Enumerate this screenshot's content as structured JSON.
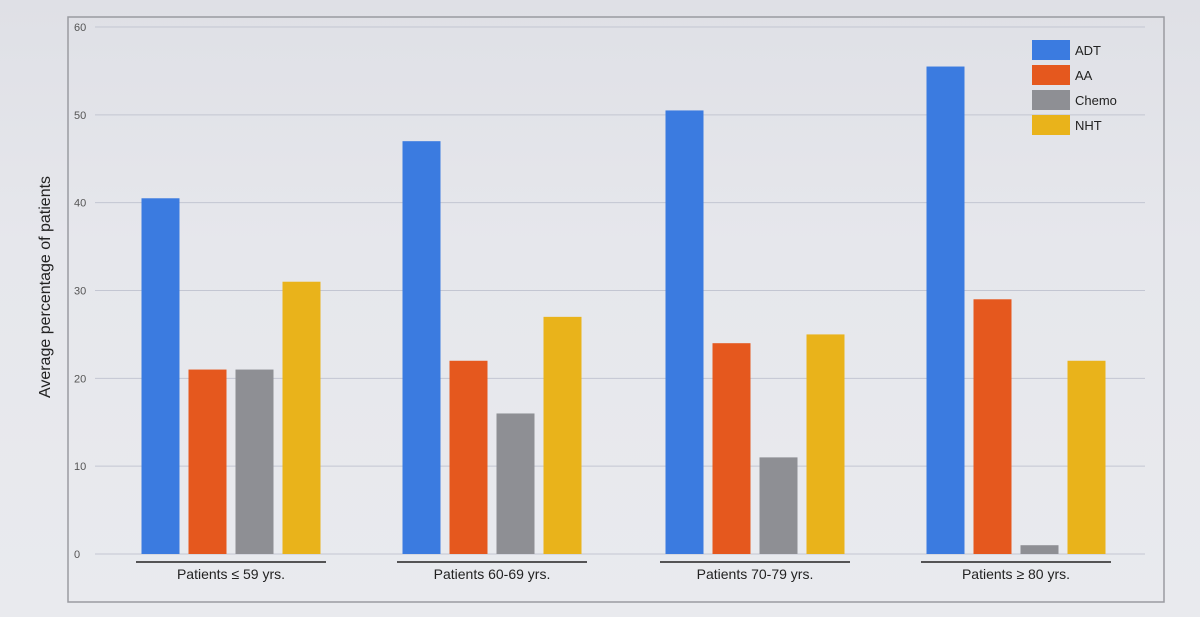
{
  "chart_data": {
    "type": "bar",
    "ylabel": "Average percentage of patients",
    "ylim": [
      0,
      60
    ],
    "yticks": [
      0,
      10,
      20,
      30,
      40,
      50,
      60
    ],
    "grid": true,
    "legend_position": "top-right",
    "categories": [
      "Patients ≤ 59 yrs.",
      "Patients 60-69 yrs.",
      "Patients 70-79 yrs.",
      "Patients ≥ 80 yrs."
    ],
    "series": [
      {
        "name": "ADT",
        "color": "#3b7be0",
        "values": [
          40.5,
          47,
          50.5,
          55.5
        ]
      },
      {
        "name": "AA",
        "color": "#e5581e",
        "values": [
          21,
          22,
          24,
          29
        ]
      },
      {
        "name": "Chemo",
        "color": "#8e8f94",
        "values": [
          21,
          16,
          11,
          1
        ]
      },
      {
        "name": "NHT",
        "color": "#e9b31b",
        "values": [
          31,
          27,
          25,
          22
        ]
      }
    ]
  }
}
